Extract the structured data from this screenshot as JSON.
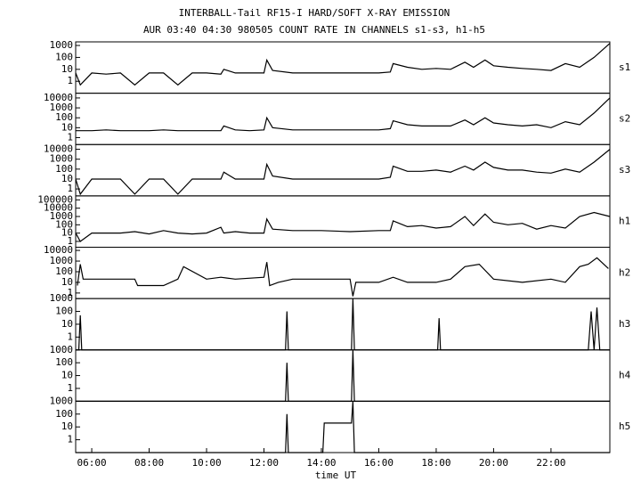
{
  "chart_data": [
    {
      "type": "line",
      "title": "INTERBALL-Tail RF15-I HARD/SOFT X-RAY EMISSION",
      "subtitle": "AUR 03:40 04:30 980505  COUNT RATE IN CHANNELS s1-s3, h1-h5",
      "log_y": true,
      "series": [
        {
          "name": "s1",
          "color": "#000000",
          "x": [
            5.44,
            5.6,
            6,
            6.5,
            7,
            7.5,
            8,
            8.5,
            9,
            9.5,
            10,
            10.5,
            10.6,
            11,
            11.5,
            12,
            12.1,
            12.3,
            13,
            14,
            15,
            16,
            16.4,
            16.5,
            17,
            17.5,
            18,
            18.5,
            19,
            19.3,
            19.7,
            20,
            20.5,
            21,
            21.5,
            22,
            22.5,
            23,
            23.5,
            24.05
          ],
          "values": [
            5,
            0.5,
            5,
            4,
            5,
            0.5,
            5,
            5,
            0.5,
            5,
            5,
            4,
            10,
            5,
            5,
            5,
            60,
            8,
            5,
            5,
            5,
            5,
            6,
            30,
            15,
            10,
            12,
            10,
            40,
            15,
            60,
            20,
            15,
            12,
            10,
            8,
            30,
            15,
            100,
            1500
          ]
        }
      ],
      "xlim": [
        5.44,
        24.05
      ],
      "ylim": [
        0.1,
        2000
      ],
      "yticks": [
        1,
        10,
        100,
        1000
      ]
    },
    {
      "type": "line",
      "log_y": true,
      "series": [
        {
          "name": "s2",
          "color": "#000000",
          "x": [
            5.44,
            5.6,
            6,
            6.5,
            7,
            7.5,
            8,
            8.5,
            9,
            9.5,
            10,
            10.5,
            10.6,
            11,
            11.5,
            12,
            12.1,
            12.3,
            13,
            14,
            15,
            16,
            16.4,
            16.5,
            17,
            17.5,
            18,
            18.5,
            19,
            19.3,
            19.7,
            20,
            20.5,
            21,
            21.5,
            22,
            22.5,
            23,
            23.5,
            24.05
          ],
          "values": [
            5,
            5,
            5,
            6,
            5,
            5,
            5,
            6,
            5,
            5,
            5,
            5,
            15,
            6,
            5,
            6,
            100,
            10,
            6,
            6,
            6,
            6,
            8,
            50,
            20,
            15,
            15,
            15,
            60,
            20,
            100,
            30,
            20,
            15,
            20,
            10,
            40,
            20,
            300,
            10000
          ]
        }
      ],
      "xlim": [
        5.44,
        24.05
      ],
      "ylim": [
        0.2,
        30000
      ],
      "yticks": [
        1,
        10,
        100,
        1000,
        10000
      ]
    },
    {
      "type": "line",
      "log_y": true,
      "series": [
        {
          "name": "s3",
          "color": "#000000",
          "x": [
            5.44,
            5.6,
            6,
            6.5,
            7,
            7.5,
            8,
            8.5,
            9,
            9.5,
            10,
            10.5,
            10.6,
            11,
            11.5,
            12,
            12.1,
            12.3,
            13,
            14,
            15,
            16,
            16.4,
            16.5,
            17,
            17.5,
            18,
            18.5,
            19,
            19.3,
            19.7,
            20,
            20.5,
            21,
            21.5,
            22,
            22.5,
            23,
            23.5,
            24.05
          ],
          "values": [
            10,
            0.3,
            10,
            10,
            10,
            0.3,
            10,
            10,
            0.3,
            10,
            10,
            10,
            50,
            10,
            10,
            10,
            300,
            20,
            10,
            10,
            10,
            10,
            15,
            200,
            60,
            60,
            80,
            50,
            200,
            80,
            500,
            150,
            80,
            80,
            50,
            40,
            100,
            50,
            500,
            10000
          ]
        }
      ],
      "xlim": [
        5.44,
        24.05
      ],
      "ylim": [
        0.2,
        30000
      ],
      "yticks": [
        1,
        10,
        100,
        1000,
        10000
      ]
    },
    {
      "type": "line",
      "log_y": true,
      "series": [
        {
          "name": "h1",
          "color": "#000000",
          "x": [
            5.44,
            5.6,
            6,
            6.5,
            7,
            7.5,
            8,
            8.5,
            9,
            9.5,
            10,
            10.5,
            10.6,
            11,
            11.5,
            12,
            12.1,
            12.3,
            13,
            14,
            15,
            16,
            16.4,
            16.5,
            17,
            17.5,
            18,
            18.5,
            19,
            19.3,
            19.7,
            20,
            20.5,
            21,
            21.5,
            22,
            22.5,
            23,
            23.5,
            24.05
          ],
          "values": [
            10,
            1,
            10,
            10,
            10,
            15,
            8,
            20,
            10,
            8,
            10,
            50,
            10,
            15,
            10,
            10,
            500,
            30,
            20,
            20,
            15,
            20,
            20,
            300,
            60,
            80,
            40,
            60,
            1000,
            80,
            2000,
            200,
            100,
            150,
            30,
            80,
            40,
            1000,
            3000,
            1000
          ]
        }
      ],
      "xlim": [
        5.44,
        24.05
      ],
      "ylim": [
        0.2,
        300000
      ],
      "yticks": [
        1,
        10,
        100,
        1000,
        10000,
        100000
      ]
    },
    {
      "type": "line",
      "log_y": true,
      "series": [
        {
          "name": "h2",
          "color": "#000000",
          "x": [
            5.5,
            5.6,
            5.7,
            6,
            7.5,
            7.6,
            8.5,
            9,
            9.2,
            10,
            10.5,
            11,
            12,
            12.1,
            12.2,
            12.5,
            13,
            13.3,
            15,
            15.1,
            15.2,
            16,
            16.5,
            17,
            18,
            18.5,
            19,
            19.5,
            20,
            21,
            22,
            22.5,
            23,
            23.3,
            23.6,
            24
          ],
          "values": [
            5,
            500,
            20,
            20,
            20,
            5,
            5,
            20,
            300,
            20,
            30,
            20,
            30,
            800,
            5,
            10,
            20,
            20,
            20,
            0.5,
            10,
            10,
            30,
            10,
            10,
            20,
            300,
            500,
            20,
            10,
            20,
            10,
            300,
            500,
            2000,
            200
          ]
        }
      ],
      "xlim": [
        5.44,
        24.05
      ],
      "ylim": [
        0.3,
        20000
      ],
      "yticks": [
        1,
        10,
        100,
        1000,
        10000
      ]
    },
    {
      "type": "line",
      "log_y": true,
      "series": [
        {
          "name": "h3",
          "color": "#000000",
          "x": [
            5.44,
            5.55,
            5.6,
            5.65,
            12.75,
            12.8,
            12.85,
            15.05,
            15.1,
            15.15,
            18.05,
            18.1,
            18.15,
            23.3,
            23.4,
            23.5,
            23.6,
            23.7,
            24.05
          ],
          "values": [
            0.1,
            0.1,
            50,
            0.1,
            0.1,
            100,
            0.1,
            0.1,
            1000,
            0.1,
            0.1,
            30,
            0.1,
            0.1,
            100,
            0.1,
            200,
            0.1,
            0.1
          ]
        }
      ],
      "xlim": [
        5.44,
        24.05
      ],
      "ylim": [
        0.1,
        1000
      ],
      "yticks": [
        1,
        10,
        100,
        1000
      ]
    },
    {
      "type": "line",
      "log_y": true,
      "series": [
        {
          "name": "h4",
          "color": "#000000",
          "x": [
            5.44,
            12.75,
            12.8,
            12.85,
            15.05,
            15.1,
            15.15,
            24.05
          ],
          "values": [
            0.1,
            0.1,
            100,
            0.1,
            0.1,
            1000,
            0.1,
            0.1
          ]
        }
      ],
      "xlim": [
        5.44,
        24.05
      ],
      "ylim": [
        0.1,
        1000
      ],
      "yticks": [
        1,
        10,
        100,
        1000
      ]
    },
    {
      "type": "line",
      "log_y": true,
      "x_label": "time UT",
      "series": [
        {
          "name": "h5",
          "color": "#000000",
          "x": [
            5.44,
            12.75,
            12.8,
            12.85,
            14.05,
            14.1,
            15.05,
            15.1,
            15.15,
            24.05
          ],
          "values": [
            0.1,
            0.1,
            100,
            0.1,
            0.1,
            20,
            20,
            1000,
            0.1,
            0.1
          ]
        }
      ],
      "xlim": [
        5.44,
        24.05
      ],
      "ylim": [
        0.1,
        1000
      ],
      "yticks": [
        1,
        10,
        100,
        1000
      ],
      "xticks": [
        {
          "value": 6,
          "label": "06:00"
        },
        {
          "value": 8,
          "label": "08:00"
        },
        {
          "value": 10,
          "label": "10:00"
        },
        {
          "value": 12,
          "label": "12:00"
        },
        {
          "value": 14,
          "label": "14:00"
        },
        {
          "value": 16,
          "label": "16:00"
        },
        {
          "value": 18,
          "label": "18:00"
        },
        {
          "value": 20,
          "label": "20:00"
        },
        {
          "value": 22,
          "label": "22:00"
        }
      ]
    }
  ]
}
